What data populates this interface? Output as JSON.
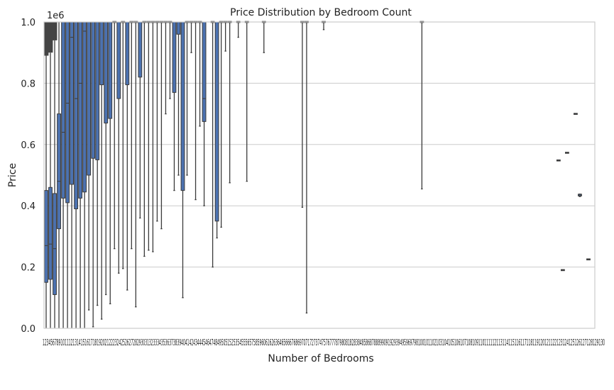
{
  "chart_data": {
    "type": "box",
    "title": "Price Distribution by Bedroom Count",
    "xlabel": "Number of Bedrooms",
    "ylabel": "Price",
    "y_offset_text": "1e6",
    "ylim": [
      0,
      1000000
    ],
    "yticks": [
      {
        "value": 0,
        "label": "0.0"
      },
      {
        "value": 200000,
        "label": "0.2"
      },
      {
        "value": 400000,
        "label": "0.4"
      },
      {
        "value": 600000,
        "label": "0.6"
      },
      {
        "value": 800000,
        "label": "0.8"
      },
      {
        "value": 1000000,
        "label": "1.0"
      }
    ],
    "grid": "horizontal",
    "color": "#4c72b0",
    "x_tick_labels": "1234567891011121314151617181920212223242526272829303132333435363738394041424344454647484950515253545556575859606162636465666768697071727374757677787980818283848586878889909192939495969798100101102103104105106107108109110111112113114115116117118119120121122123124125126127128129130",
    "categories": [
      "1",
      "2",
      "3",
      "4",
      "5",
      "6",
      "7",
      "8",
      "9",
      "10",
      "11",
      "12",
      "13",
      "14",
      "15",
      "16",
      "17",
      "18",
      "19",
      "20",
      "21",
      "22",
      "23",
      "24",
      "25",
      "26",
      "27",
      "28",
      "29",
      "30",
      "31",
      "32",
      "33",
      "34",
      "35",
      "36",
      "37",
      "38",
      "39",
      "40",
      "41",
      "42",
      "43",
      "44",
      "45",
      "46",
      "47",
      "48",
      "49",
      "50",
      "51",
      "52",
      "53",
      "54",
      "55",
      "56",
      "57",
      "58",
      "59",
      "60",
      "61",
      "62",
      "63",
      "64",
      "65",
      "66",
      "67",
      "68",
      "69",
      "70",
      "71",
      "72",
      "73",
      "74",
      "75",
      "76",
      "77",
      "78",
      "79",
      "80",
      "81",
      "82",
      "83",
      "84",
      "85",
      "86",
      "87",
      "88",
      "89",
      "90",
      "91",
      "92",
      "93",
      "94",
      "95",
      "96",
      "97",
      "98",
      "100",
      "101",
      "102",
      "103",
      "104",
      "105",
      "106",
      "107",
      "108",
      "109",
      "110",
      "111",
      "112",
      "113",
      "114",
      "115",
      "116",
      "117",
      "118",
      "119",
      "120",
      "121",
      "122",
      "123",
      "124",
      "125",
      "126",
      "127",
      "128",
      "129",
      "130"
    ],
    "boxes": [
      {
        "bedrooms": 1,
        "min": 0,
        "q1": 150000,
        "median": 270000,
        "q3": 450000,
        "max": 890000,
        "outliers_high": true
      },
      {
        "bedrooms": 2,
        "min": 0,
        "q1": 160000,
        "median": 275000,
        "q3": 460000,
        "max": 900000,
        "outliers_high": true
      },
      {
        "bedrooms": 3,
        "min": 0,
        "q1": 110000,
        "median": 260000,
        "q3": 440000,
        "max": 940000,
        "outliers_high": true
      },
      {
        "bedrooms": 4,
        "min": 0,
        "q1": 325000,
        "median": 480000,
        "q3": 700000,
        "max": 1000000
      },
      {
        "bedrooms": 5,
        "min": 0,
        "q1": 425000,
        "median": 640000,
        "q3": 1000000,
        "max": 1000000
      },
      {
        "bedrooms": 6,
        "min": 0,
        "q1": 410000,
        "median": 735000,
        "q3": 1000000,
        "max": 1000000
      },
      {
        "bedrooms": 7,
        "min": 0,
        "q1": 470000,
        "median": 950000,
        "q3": 1000000,
        "max": 1000000
      },
      {
        "bedrooms": 8,
        "min": 0,
        "q1": 390000,
        "median": 750000,
        "q3": 1000000,
        "max": 1000000
      },
      {
        "bedrooms": 9,
        "min": 0,
        "q1": 425000,
        "median": 800000,
        "q3": 1000000,
        "max": 1000000
      },
      {
        "bedrooms": 10,
        "min": 0,
        "q1": 445000,
        "median": 970000,
        "q3": 1000000,
        "max": 1000000
      },
      {
        "bedrooms": 11,
        "min": 60000,
        "q1": 500000,
        "median": 1000000,
        "q3": 1000000,
        "max": 1000000
      },
      {
        "bedrooms": 12,
        "min": 5000,
        "q1": 555000,
        "median": 1000000,
        "q3": 1000000,
        "max": 1000000
      },
      {
        "bedrooms": 13,
        "min": 75000,
        "q1": 550000,
        "median": 1000000,
        "q3": 1000000,
        "max": 1000000
      },
      {
        "bedrooms": 14,
        "min": 30000,
        "q1": 795000,
        "median": 1000000,
        "q3": 1000000,
        "max": 1000000
      },
      {
        "bedrooms": 15,
        "min": 110000,
        "q1": 670000,
        "median": 1000000,
        "q3": 1000000,
        "max": 1000000
      },
      {
        "bedrooms": 16,
        "min": 80000,
        "q1": 685000,
        "median": 1000000,
        "q3": 1000000,
        "max": 1000000
      },
      {
        "bedrooms": 17,
        "min": 260000,
        "q1": 1000000,
        "median": 1000000,
        "q3": 1000000,
        "max": 1000000
      },
      {
        "bedrooms": 18,
        "min": 180000,
        "q1": 750000,
        "median": 1000000,
        "q3": 1000000,
        "max": 1000000
      },
      {
        "bedrooms": 19,
        "min": 195000,
        "q1": 1000000,
        "median": 1000000,
        "q3": 1000000,
        "max": 1000000
      },
      {
        "bedrooms": 20,
        "min": 125000,
        "q1": 795000,
        "median": 1000000,
        "q3": 1000000,
        "max": 1000000
      },
      {
        "bedrooms": 21,
        "min": 260000,
        "q1": 1000000,
        "median": 1000000,
        "q3": 1000000,
        "max": 1000000
      },
      {
        "bedrooms": 22,
        "min": 70000,
        "q1": 1000000,
        "median": 1000000,
        "q3": 1000000,
        "max": 1000000
      },
      {
        "bedrooms": 23,
        "min": 360000,
        "q1": 820000,
        "median": 1000000,
        "q3": 1000000,
        "max": 1000000
      },
      {
        "bedrooms": 24,
        "min": 235000,
        "q1": 1000000,
        "median": 1000000,
        "q3": 1000000,
        "max": 1000000
      },
      {
        "bedrooms": 25,
        "min": 255000,
        "q1": 1000000,
        "median": 1000000,
        "q3": 1000000,
        "max": 1000000
      },
      {
        "bedrooms": 26,
        "min": 250000,
        "q1": 1000000,
        "median": 1000000,
        "q3": 1000000,
        "max": 1000000
      },
      {
        "bedrooms": 27,
        "min": 350000,
        "q1": 1000000,
        "median": 1000000,
        "q3": 1000000,
        "max": 1000000
      },
      {
        "bedrooms": 28,
        "min": 325000,
        "q1": 1000000,
        "median": 1000000,
        "q3": 1000000,
        "max": 1000000
      },
      {
        "bedrooms": 29,
        "min": 700000,
        "q1": 1000000,
        "median": 1000000,
        "q3": 1000000,
        "max": 1000000
      },
      {
        "bedrooms": 30,
        "min": 750000,
        "q1": 1000000,
        "median": 1000000,
        "q3": 1000000,
        "max": 1000000
      },
      {
        "bedrooms": 31,
        "min": 450000,
        "q1": 770000,
        "median": 1000000,
        "q3": 1000000,
        "max": 1000000
      },
      {
        "bedrooms": 32,
        "min": 500000,
        "q1": 960000,
        "median": 1000000,
        "q3": 1000000,
        "max": 1000000
      },
      {
        "bedrooms": 33,
        "min": 100000,
        "q1": 450000,
        "median": 1000000,
        "q3": 1000000,
        "max": 1000000
      },
      {
        "bedrooms": 34,
        "min": 500000,
        "q1": 1000000,
        "median": 1000000,
        "q3": 1000000,
        "max": 1000000
      },
      {
        "bedrooms": 35,
        "min": 900000,
        "q1": 1000000,
        "median": 1000000,
        "q3": 1000000,
        "max": 1000000
      },
      {
        "bedrooms": 36,
        "min": 420000,
        "q1": 1000000,
        "median": 1000000,
        "q3": 1000000,
        "max": 1000000
      },
      {
        "bedrooms": 37,
        "min": 660000,
        "q1": 1000000,
        "median": 1000000,
        "q3": 1000000,
        "max": 1000000
      },
      {
        "bedrooms": 38,
        "min": 400000,
        "q1": 675000,
        "median": 750000,
        "q3": 1000000,
        "max": 1000000
      },
      {
        "bedrooms": 40,
        "min": 200000,
        "q1": 1000000,
        "median": 1000000,
        "q3": 1000000,
        "max": 1000000
      },
      {
        "bedrooms": 41,
        "min": 295000,
        "q1": 350000,
        "median": 1000000,
        "q3": 1000000,
        "max": 1000000
      },
      {
        "bedrooms": 42,
        "min": 330000,
        "q1": 1000000,
        "median": 1000000,
        "q3": 1000000,
        "max": 1000000
      },
      {
        "bedrooms": 43,
        "min": 905000,
        "q1": 1000000,
        "median": 1000000,
        "q3": 1000000,
        "max": 1000000
      },
      {
        "bedrooms": 44,
        "min": 475000,
        "q1": 1000000,
        "median": 1000000,
        "q3": 1000000,
        "max": 1000000
      },
      {
        "bedrooms": 46,
        "min": 950000,
        "q1": 1000000,
        "median": 1000000,
        "q3": 1000000,
        "max": 1000000
      },
      {
        "bedrooms": 48,
        "min": 480000,
        "q1": 1000000,
        "median": 1000000,
        "q3": 1000000,
        "max": 1000000
      },
      {
        "bedrooms": 52,
        "min": 900000,
        "q1": 1000000,
        "median": 1000000,
        "q3": 1000000,
        "max": 1000000
      },
      {
        "bedrooms": 61,
        "min": 395000,
        "q1": 1000000,
        "median": 1000000,
        "q3": 1000000,
        "max": 1000000
      },
      {
        "bedrooms": 62,
        "min": 50000,
        "q1": 1000000,
        "median": 1000000,
        "q3": 1000000,
        "max": 1000000
      },
      {
        "bedrooms": 66,
        "min": 975000,
        "q1": 1000000,
        "median": 1000000,
        "q3": 1000000,
        "max": 1000000
      },
      {
        "bedrooms": 89,
        "min": 455000,
        "q1": 1000000,
        "median": 1000000,
        "q3": 1000000,
        "max": 1000000
      },
      {
        "bedrooms": 122,
        "min": 548000,
        "q1": 548000,
        "median": 548000,
        "q3": 548000,
        "max": 548000
      },
      {
        "bedrooms": 123,
        "min": 190000,
        "q1": 190000,
        "median": 190000,
        "q3": 190000,
        "max": 190000
      },
      {
        "bedrooms": 124,
        "min": 573000,
        "q1": 573000,
        "median": 573000,
        "q3": 573000,
        "max": 573000
      },
      {
        "bedrooms": 126,
        "min": 700000,
        "q1": 700000,
        "median": 700000,
        "q3": 700000,
        "max": 700000
      },
      {
        "bedrooms": 127,
        "min": 430000,
        "q1": 432000,
        "median": 435000,
        "q3": 438000,
        "max": 440000
      },
      {
        "bedrooms": 129,
        "min": 225000,
        "q1": 225000,
        "median": 225000,
        "q3": 225000,
        "max": 225000
      }
    ]
  }
}
